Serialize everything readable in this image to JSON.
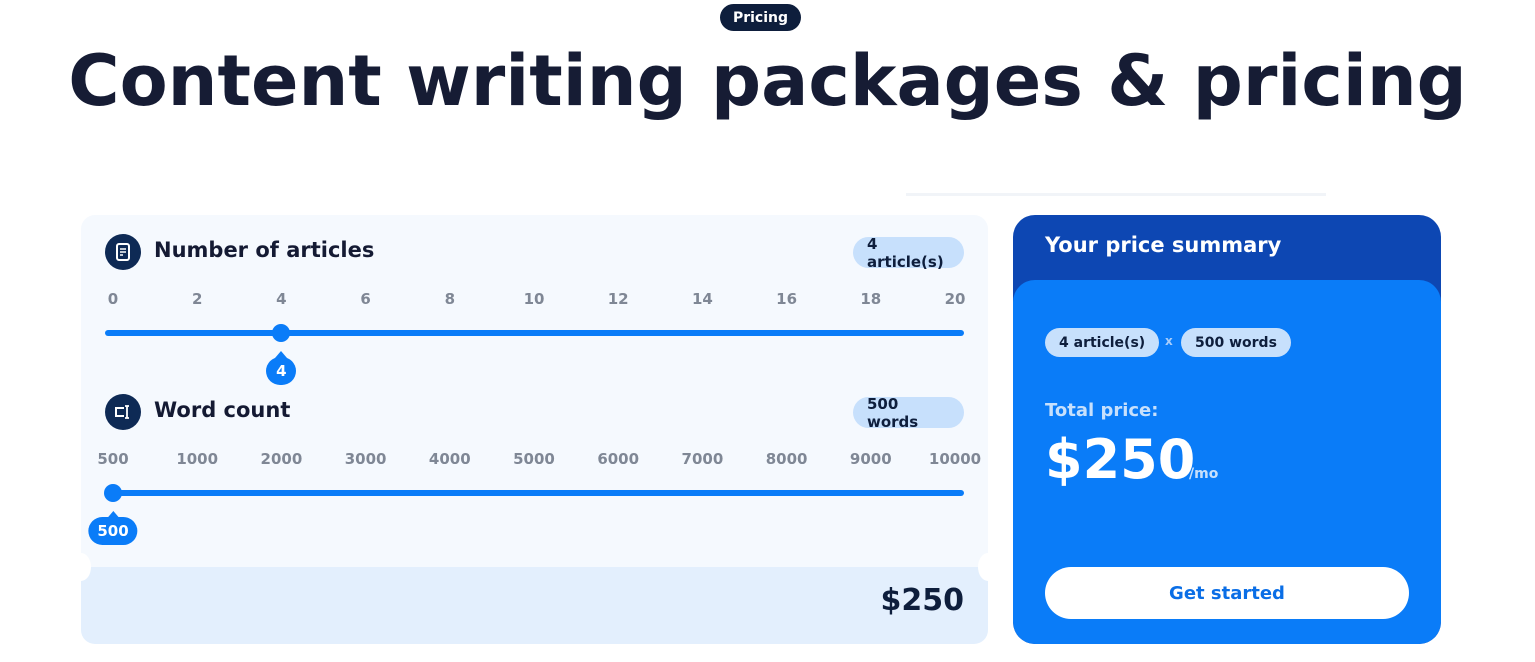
{
  "header": {
    "badge": "Pricing",
    "title": "Content writing packages & pricing"
  },
  "articles": {
    "title": "Number of articles",
    "icon": "document-icon",
    "pill": "4 article(s)",
    "ticks": [
      "0",
      "2",
      "4",
      "6",
      "8",
      "10",
      "12",
      "14",
      "16",
      "18",
      "20"
    ],
    "min": 0,
    "max": 20,
    "value": 4,
    "value_label": "4"
  },
  "words": {
    "title": "Word count",
    "icon": "text-cursor-icon",
    "pill": "500 words",
    "ticks": [
      "500",
      "1000",
      "2000",
      "3000",
      "4000",
      "5000",
      "6000",
      "7000",
      "8000",
      "9000",
      "10000"
    ],
    "value_index": 0,
    "value_label": "500"
  },
  "subtotal": "$250",
  "summary": {
    "title": "Your price summary",
    "articles_pill": "4 article(s)",
    "times": "x",
    "words_pill": "500 words",
    "total_label": "Total price:",
    "total": "$250",
    "per": "/mo",
    "cta": "Get started"
  },
  "colors": {
    "accent": "#0a7cf8",
    "dark_blue": "#0d47b3",
    "navy": "#0e1e3c"
  }
}
